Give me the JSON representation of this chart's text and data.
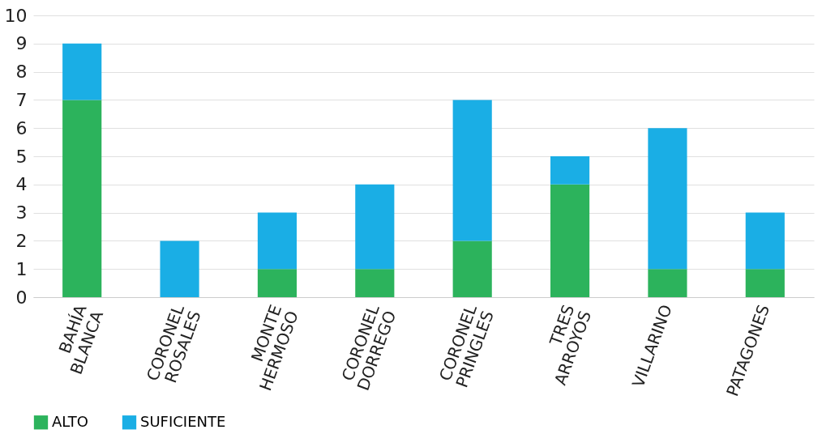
{
  "chart_data": {
    "type": "bar",
    "stacked": true,
    "categories": [
      "BAHÍA BLANCA",
      "CORONEL ROSALES",
      "MONTE HERMOSO",
      "CORONEL DORREGO",
      "CORONEL PRINGLES",
      "TRES ARROYOS",
      "VILLARINO",
      "PATAGONES"
    ],
    "series": [
      {
        "name": "ALTO",
        "color": "#2cb35c",
        "values": [
          7,
          0,
          1,
          1,
          2,
          4,
          1,
          1
        ]
      },
      {
        "name": "SUFICIENTE",
        "color": "#1aaee5",
        "values": [
          2,
          2,
          2,
          3,
          5,
          1,
          5,
          2
        ]
      }
    ],
    "ylim": [
      0,
      10
    ],
    "yticks": [
      0,
      1,
      2,
      3,
      4,
      5,
      6,
      7,
      8,
      9,
      10
    ],
    "grid": "y",
    "legend": "bottom"
  }
}
